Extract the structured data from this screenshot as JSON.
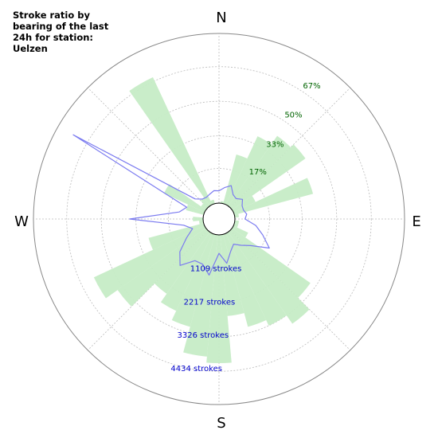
{
  "chart_data": {
    "type": "polar-bar",
    "title": "Stroke ratio by bearing of the last 24h for station: Uelzen",
    "directions": {
      "n": "N",
      "e": "E",
      "s": "S",
      "w": "W"
    },
    "bearing_step_deg": 10,
    "ratio_max_pct": 83.33,
    "ratio_ticks": [
      {
        "value": 17,
        "label": "17%"
      },
      {
        "value": 33,
        "label": "33%"
      },
      {
        "value": 50,
        "label": "50%"
      },
      {
        "value": 67,
        "label": "67%"
      }
    ],
    "count_max": 5543,
    "count_ticks": [
      {
        "value": 1109,
        "label": "1109 strokes"
      },
      {
        "value": 2217,
        "label": "2217 strokes"
      },
      {
        "value": 3326,
        "label": "3326 strokes"
      },
      {
        "value": 4434,
        "label": "4434 strokes"
      }
    ],
    "ratio_series": {
      "bearings": [
        0,
        10,
        20,
        30,
        40,
        50,
        60,
        70,
        80,
        90,
        100,
        110,
        120,
        130,
        140,
        150,
        160,
        170,
        180,
        190,
        200,
        210,
        220,
        230,
        240,
        250,
        260,
        270,
        280,
        290,
        300,
        310,
        320,
        330,
        340,
        350
      ],
      "values": [
        0,
        1,
        25,
        37,
        42,
        44,
        12,
        40,
        2,
        0,
        2,
        2,
        8,
        47,
        55,
        50,
        47,
        40,
        63,
        60,
        47,
        42,
        37,
        53,
        60,
        28,
        2,
        5,
        0,
        9,
        22,
        3,
        5,
        69,
        2,
        0
      ]
    },
    "count_series": {
      "bearings": [
        0,
        10,
        20,
        30,
        40,
        50,
        60,
        70,
        80,
        90,
        100,
        110,
        120,
        130,
        140,
        150,
        160,
        170,
        180,
        190,
        200,
        210,
        220,
        230,
        240,
        250,
        260,
        270,
        280,
        290,
        300,
        310,
        320,
        330,
        340,
        350
      ],
      "values": [
        400,
        520,
        640,
        400,
        350,
        480,
        350,
        330,
        400,
        330,
        700,
        1000,
        1380,
        830,
        600,
        430,
        600,
        950,
        600,
        1340,
        1050,
        1050,
        1460,
        1150,
        700,
        400,
        650,
        2400,
        800,
        600,
        4980,
        500,
        330,
        300,
        350,
        420
      ]
    }
  }
}
